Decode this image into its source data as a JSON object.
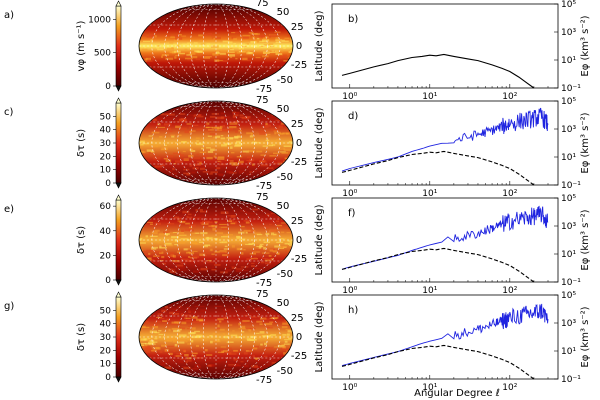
{
  "colors": {
    "spectrum_black": "#000000",
    "spectrum_blue": "#1f24e0",
    "map_low": "#6b0000",
    "map_mid": "#e33a12",
    "map_high": "#ffff8c"
  },
  "rows": [
    {
      "map_label": "a)",
      "colorbar": {
        "label": "vφ (m s⁻¹)",
        "ticks": [
          "1000",
          "500",
          "0"
        ],
        "range": [
          0,
          1200
        ]
      },
      "lat_ticks": [
        "75",
        "50",
        "25",
        "0",
        "-25",
        "-50",
        "-75"
      ],
      "spec_label": "b)",
      "series": [
        "black"
      ]
    },
    {
      "map_label": "c)",
      "colorbar": {
        "label": "δτ (s)",
        "ticks": [
          "50",
          "40",
          "30",
          "20",
          "10",
          "0"
        ],
        "range": [
          0,
          60
        ]
      },
      "lat_ticks": [
        "75",
        "50",
        "25",
        "0",
        "-25",
        "-50",
        "-75"
      ],
      "spec_label": "d)",
      "series": [
        "blue",
        "black-dashed"
      ]
    },
    {
      "map_label": "e)",
      "colorbar": {
        "label": "δτ (s)",
        "ticks": [
          "60",
          "40",
          "20",
          "0"
        ],
        "range": [
          0,
          65
        ]
      },
      "lat_ticks": [
        "75",
        "50",
        "25",
        "0",
        "-25",
        "-50",
        "-75"
      ],
      "spec_label": "f)",
      "series": [
        "blue",
        "black-dashed"
      ]
    },
    {
      "map_label": "g)",
      "colorbar": {
        "label": "δτ (s)",
        "ticks": [
          "50",
          "40",
          "30",
          "20",
          "10",
          "0"
        ],
        "range": [
          0,
          60
        ]
      },
      "lat_ticks": [
        "75",
        "50",
        "25",
        "0",
        "-25",
        "-50",
        "-75"
      ],
      "spec_label": "h)",
      "series": [
        "blue",
        "black-dashed"
      ]
    }
  ],
  "chart_data": {
    "type": "line",
    "title": "",
    "xlabel": "Angular Degree ℓ",
    "ylabel_left": "Latitude (deg)",
    "ylabel_right": "Eφ (km³ s⁻²)",
    "xscale": "log",
    "yscale": "log",
    "xlim": [
      0.6,
      400
    ],
    "ylim": [
      0.1,
      100000
    ],
    "x_ticks": [
      "10⁰",
      "10¹",
      "10²"
    ],
    "y_ticks": [
      "10⁵",
      "10³",
      "10¹",
      "10⁻¹"
    ],
    "reference_spectrum": {
      "name": "reference (black)",
      "points": [
        [
          0.8,
          0.8
        ],
        [
          1,
          1.1
        ],
        [
          2,
          3.2
        ],
        [
          3,
          5.5
        ],
        [
          4,
          9
        ],
        [
          6,
          15
        ],
        [
          8,
          18
        ],
        [
          10,
          22
        ],
        [
          12,
          20
        ],
        [
          15,
          25
        ],
        [
          20,
          18
        ],
        [
          30,
          12
        ],
        [
          40,
          9
        ],
        [
          60,
          4.5
        ],
        [
          80,
          2.5
        ],
        [
          100,
          1.5
        ],
        [
          130,
          0.6
        ],
        [
          160,
          0.25
        ],
        [
          200,
          0.1
        ]
      ]
    },
    "inverted_spectra": [
      {
        "panel": "d)",
        "name": "inversion (blue)",
        "points": [
          [
            0.8,
            1
          ],
          [
            1,
            1.5
          ],
          [
            2,
            4
          ],
          [
            4,
            10
          ],
          [
            6,
            25
          ],
          [
            8,
            40
          ],
          [
            10,
            60
          ],
          [
            20,
            150
          ],
          [
            40,
            400
          ],
          [
            60,
            800
          ],
          [
            80,
            1500
          ],
          [
            100,
            2500
          ],
          [
            150,
            4000
          ],
          [
            200,
            5500
          ],
          [
            250,
            8000
          ],
          [
            300,
            2000
          ]
        ]
      },
      {
        "panel": "f)",
        "name": "inversion (blue)",
        "points": [
          [
            0.8,
            0.8
          ],
          [
            1,
            1.2
          ],
          [
            2,
            3
          ],
          [
            4,
            8
          ],
          [
            6,
            18
          ],
          [
            8,
            30
          ],
          [
            10,
            45
          ],
          [
            20,
            110
          ],
          [
            40,
            300
          ],
          [
            60,
            700
          ],
          [
            80,
            1300
          ],
          [
            100,
            2200
          ],
          [
            150,
            3600
          ],
          [
            200,
            5000
          ],
          [
            250,
            7000
          ],
          [
            300,
            1800
          ]
        ]
      },
      {
        "panel": "h)",
        "name": "inversion (blue)",
        "points": [
          [
            0.8,
            0.9
          ],
          [
            1,
            1.3
          ],
          [
            2,
            3.5
          ],
          [
            4,
            9
          ],
          [
            6,
            20
          ],
          [
            8,
            35
          ],
          [
            10,
            50
          ],
          [
            20,
            130
          ],
          [
            40,
            350
          ],
          [
            60,
            750
          ],
          [
            80,
            1400
          ],
          [
            100,
            2300
          ],
          [
            150,
            3800
          ],
          [
            200,
            5200
          ],
          [
            250,
            7500
          ],
          [
            300,
            1900
          ]
        ]
      }
    ]
  }
}
